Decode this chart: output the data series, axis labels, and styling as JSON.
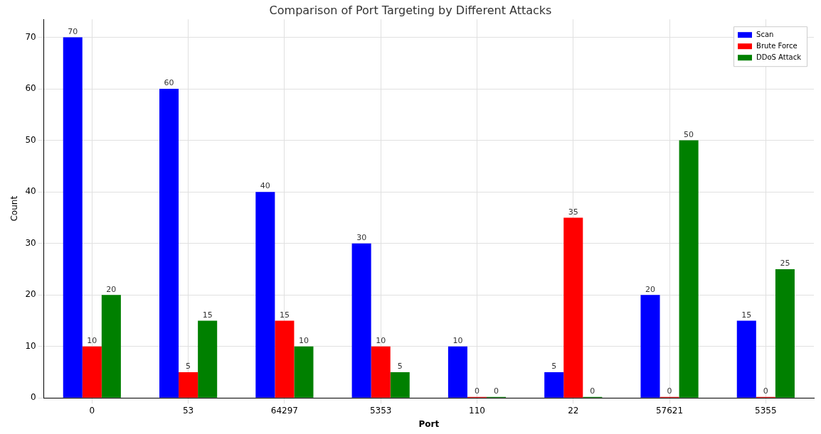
{
  "chart_data": {
    "type": "bar",
    "title": "Comparison of Port Targeting by Different Attacks",
    "xlabel": "Port",
    "ylabel": "Count",
    "categories": [
      "0",
      "53",
      "64297",
      "5353",
      "110",
      "22",
      "57621",
      "5355"
    ],
    "series": [
      {
        "name": "Scan",
        "color": "#0000ff",
        "values": [
          70,
          60,
          40,
          30,
          10,
          5,
          20,
          15
        ]
      },
      {
        "name": "Brute Force",
        "color": "#ff0000",
        "values": [
          10,
          5,
          15,
          10,
          0,
          35,
          0,
          0
        ]
      },
      {
        "name": "DDoS Attack",
        "color": "#008000",
        "values": [
          20,
          15,
          10,
          5,
          0,
          0,
          50,
          25
        ]
      }
    ],
    "ylim": [
      0,
      73.5
    ],
    "yticks": [
      0,
      10,
      20,
      30,
      40,
      50,
      60,
      70
    ],
    "grid": true,
    "legend": "top right",
    "data_labels": true
  }
}
